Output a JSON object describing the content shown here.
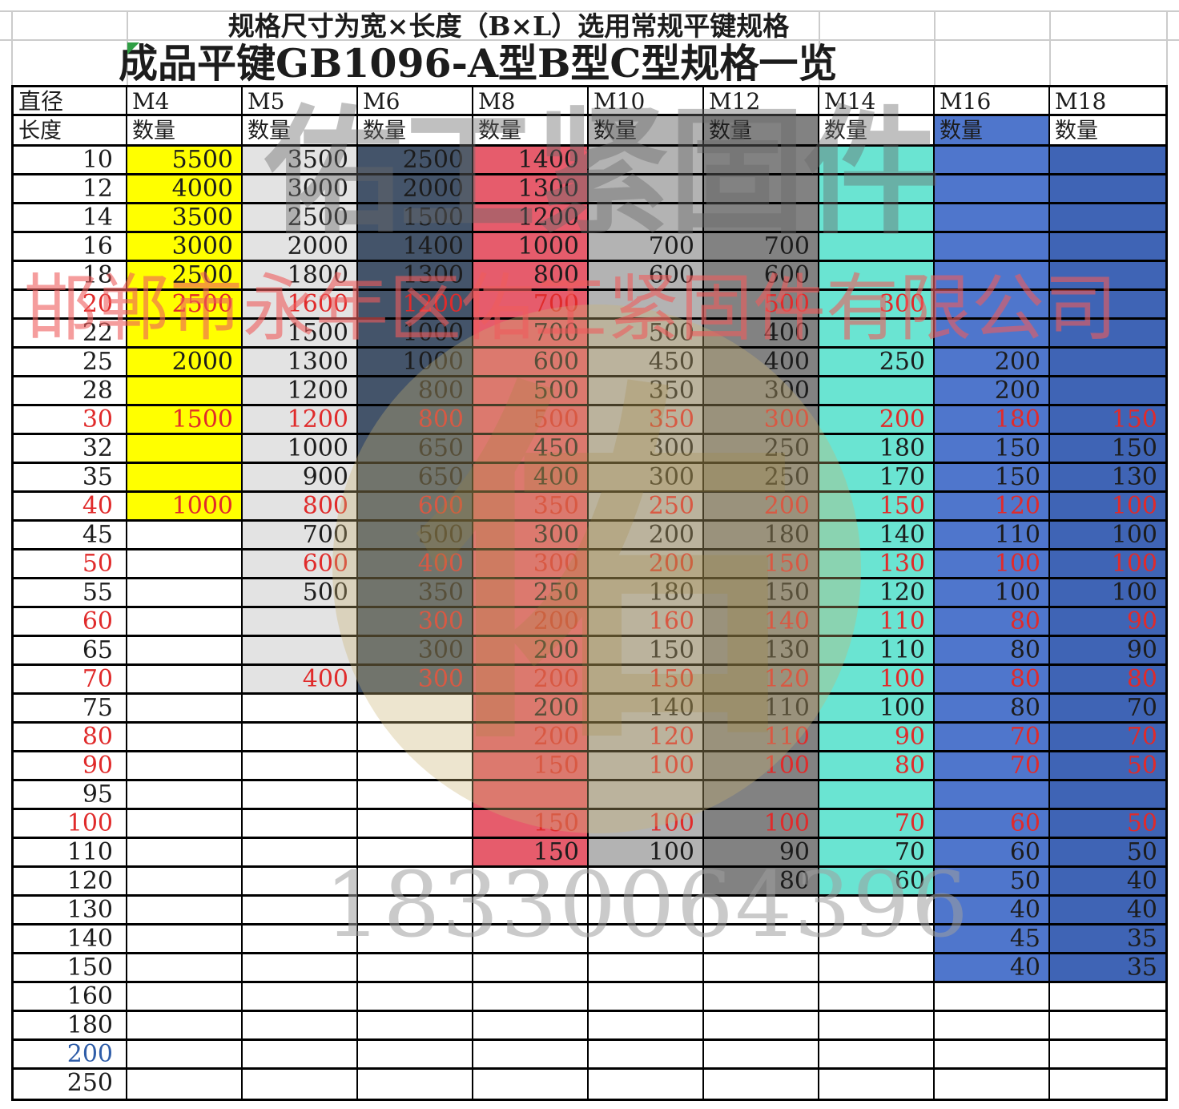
{
  "titles": {
    "line1": "规格尺寸为宽×长度（B×L）选用常规平键规格",
    "line2": "成品平键GB1096-A型B型C型规格一览"
  },
  "header": {
    "corner_top": "直径",
    "corner_bottom": "长度",
    "qty_label": "数量",
    "columns": [
      "M4",
      "M5",
      "M6",
      "M8",
      "M10",
      "M12",
      "M14",
      "M16",
      "M18"
    ]
  },
  "column_fills": [
    {
      "col": 0,
      "bg": "#ffff00",
      "from": 0,
      "to": 12,
      "qty": false
    },
    {
      "col": 1,
      "bg": "#e3e3e3",
      "from": 0,
      "to": 18,
      "qty": false
    },
    {
      "col": 2,
      "bg": "#44546a",
      "from": 0,
      "to": 18,
      "qty": false
    },
    {
      "col": 3,
      "bg": "#e65c6c",
      "from": 0,
      "to": 24,
      "qty": false
    },
    {
      "col": 4,
      "bg": "#b3b3b3",
      "from": 0,
      "to": 24,
      "qty": true
    },
    {
      "col": 5,
      "bg": "#828282",
      "from": 0,
      "to": 25,
      "qty": true
    },
    {
      "col": 6,
      "bg": "#6ae4d2",
      "from": 0,
      "to": 25,
      "qty": false
    },
    {
      "col": 7,
      "bg": "#4f76cc",
      "from": 0,
      "to": 28,
      "qty": true
    },
    {
      "col": 8,
      "bg": "#3f64b5",
      "from": 0,
      "to": 28,
      "qty": false
    }
  ],
  "rows": [
    {
      "len": "10",
      "color": "black",
      "values": [
        "5500",
        "3500",
        "2500",
        "1400",
        "",
        "",
        "",
        "",
        ""
      ]
    },
    {
      "len": "12",
      "color": "black",
      "values": [
        "4000",
        "3000",
        "2000",
        "1300",
        "",
        "",
        "",
        "",
        ""
      ]
    },
    {
      "len": "14",
      "color": "black",
      "values": [
        "3500",
        "2500",
        "1500",
        "1200",
        "",
        "",
        "",
        "",
        ""
      ]
    },
    {
      "len": "16",
      "color": "black",
      "values": [
        "3000",
        "2000",
        "1400",
        "1000",
        "700",
        "700",
        "",
        "",
        ""
      ]
    },
    {
      "len": "18",
      "color": "black",
      "values": [
        "2500",
        "1800",
        "1300",
        "800",
        "600",
        "600",
        "",
        "",
        ""
      ]
    },
    {
      "len": "20",
      "color": "red",
      "values": [
        "2500",
        "1600",
        "1200",
        "700",
        "",
        "500",
        "300",
        "",
        ""
      ]
    },
    {
      "len": "22",
      "color": "black",
      "values": [
        "",
        "1500",
        "1000",
        "700",
        "500",
        "400",
        "",
        "",
        ""
      ]
    },
    {
      "len": "25",
      "color": "black",
      "values": [
        "2000",
        "1300",
        "1000",
        "600",
        "450",
        "400",
        "250",
        "200",
        ""
      ]
    },
    {
      "len": "28",
      "color": "black",
      "values": [
        "",
        "1200",
        "800",
        "500",
        "350",
        "300",
        "",
        "200",
        ""
      ]
    },
    {
      "len": "30",
      "color": "red",
      "values": [
        "1500",
        "1200",
        "800",
        "500",
        "350",
        "300",
        "200",
        "180",
        "150"
      ]
    },
    {
      "len": "32",
      "color": "black",
      "values": [
        "",
        "1000",
        "650",
        "450",
        "300",
        "250",
        "180",
        "150",
        "150"
      ]
    },
    {
      "len": "35",
      "color": "black",
      "values": [
        "",
        "900",
        "650",
        "400",
        "300",
        "250",
        "170",
        "150",
        "130"
      ]
    },
    {
      "len": "40",
      "color": "red",
      "values": [
        "1000",
        "800",
        "600",
        "350",
        "250",
        "200",
        "150",
        "120",
        "100"
      ]
    },
    {
      "len": "45",
      "color": "black",
      "values": [
        "",
        "700",
        "500",
        "300",
        "200",
        "180",
        "140",
        "110",
        "100"
      ]
    },
    {
      "len": "50",
      "color": "red",
      "values": [
        "",
        "600",
        "400",
        "300",
        "200",
        "150",
        "130",
        "100",
        "100"
      ]
    },
    {
      "len": "55",
      "color": "black",
      "values": [
        "",
        "500",
        "350",
        "250",
        "180",
        "150",
        "120",
        "100",
        "100"
      ]
    },
    {
      "len": "60",
      "color": "red",
      "values": [
        "",
        "",
        "300",
        "200",
        "160",
        "140",
        "110",
        "80",
        "90"
      ]
    },
    {
      "len": "65",
      "color": "black",
      "values": [
        "",
        "",
        "300",
        "200",
        "150",
        "130",
        "110",
        "80",
        "90"
      ]
    },
    {
      "len": "70",
      "color": "red",
      "values": [
        "",
        "400",
        "300",
        "200",
        "150",
        "120",
        "100",
        "80",
        "80"
      ]
    },
    {
      "len": "75",
      "color": "black",
      "values": [
        "",
        "",
        "",
        "200",
        "140",
        "110",
        "100",
        "80",
        "70"
      ]
    },
    {
      "len": "80",
      "color": "red",
      "values": [
        "",
        "",
        "",
        "200",
        "120",
        "110",
        "90",
        "70",
        "70"
      ]
    },
    {
      "len": "90",
      "color": "red",
      "values": [
        "",
        "",
        "",
        "150",
        "100",
        "100",
        "80",
        "70",
        "50"
      ]
    },
    {
      "len": "95",
      "color": "black",
      "values": [
        "",
        "",
        "",
        "",
        "",
        "",
        "",
        "",
        ""
      ]
    },
    {
      "len": "100",
      "color": "red",
      "values": [
        "",
        "",
        "",
        "150",
        "100",
        "100",
        "70",
        "60",
        "50"
      ]
    },
    {
      "len": "110",
      "color": "black",
      "values": [
        "",
        "",
        "",
        "150",
        "100",
        "90",
        "70",
        "60",
        "50"
      ]
    },
    {
      "len": "120",
      "color": "black",
      "values": [
        "",
        "",
        "",
        "",
        "",
        "80",
        "60",
        "50",
        "40"
      ]
    },
    {
      "len": "130",
      "color": "black",
      "values": [
        "",
        "",
        "",
        "",
        "",
        "",
        "",
        "40",
        "40"
      ]
    },
    {
      "len": "140",
      "color": "black",
      "values": [
        "",
        "",
        "",
        "",
        "",
        "",
        "",
        "45",
        "35"
      ]
    },
    {
      "len": "150",
      "color": "black",
      "values": [
        "",
        "",
        "",
        "",
        "",
        "",
        "",
        "40",
        "35"
      ]
    },
    {
      "len": "160",
      "color": "black",
      "values": [
        "",
        "",
        "",
        "",
        "",
        "",
        "",
        "",
        ""
      ]
    },
    {
      "len": "180",
      "color": "black",
      "values": [
        "",
        "",
        "",
        "",
        "",
        "",
        "",
        "",
        ""
      ]
    },
    {
      "len": "200",
      "color": "blue",
      "values": [
        "",
        "",
        "",
        "",
        "",
        "",
        "",
        "",
        ""
      ]
    },
    {
      "len": "250",
      "color": "black",
      "values": [
        "",
        "",
        "",
        "",
        "",
        "",
        "",
        "",
        ""
      ]
    }
  ],
  "watermarks": {
    "brand": "佑工紧固件",
    "company": "邯郸市永年区佑工紧固件有限公司",
    "phone": "18330064396",
    "logo_glyph": "佑"
  },
  "colors": {
    "red_text": "#e02b2b",
    "blue_text": "#2f5da8",
    "value_text": "#1c1c1c",
    "gridline_gray": "#cccccc"
  }
}
